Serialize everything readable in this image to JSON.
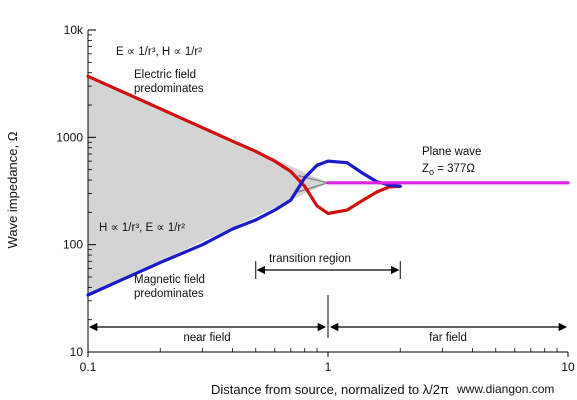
{
  "chart_data": {
    "type": "line",
    "title": "",
    "xlabel": "Distance from source, normalized to λ/2π",
    "ylabel": "Wave impedance, Ω",
    "x_scale": "log",
    "y_scale": "log",
    "xlim": [
      0.1,
      10
    ],
    "ylim": [
      10,
      10000
    ],
    "x_ticks": [
      0.1,
      1,
      10
    ],
    "x_tick_labels": [
      "0.1",
      "1",
      "10"
    ],
    "y_ticks": [
      10,
      100,
      1000,
      10000
    ],
    "y_tick_labels": [
      "10",
      "100",
      "1000",
      "10k"
    ],
    "grid": false,
    "series": [
      {
        "color": "#d01010",
        "points": [
          [
            0.1,
            3700
          ],
          [
            0.2,
            1850
          ],
          [
            0.3,
            1230
          ],
          [
            0.4,
            920
          ],
          [
            0.5,
            740
          ],
          [
            0.6,
            600
          ],
          [
            0.7,
            480
          ],
          [
            0.8,
            350
          ],
          [
            0.9,
            230
          ],
          [
            1.0,
            195
          ],
          [
            1.2,
            210
          ],
          [
            1.4,
            260
          ],
          [
            1.6,
            310
          ],
          [
            1.8,
            345
          ],
          [
            2.0,
            350
          ]
        ]
      },
      {
        "color": "#1a1ac8",
        "points": [
          [
            0.1,
            34
          ],
          [
            0.2,
            68
          ],
          [
            0.3,
            100
          ],
          [
            0.4,
            140
          ],
          [
            0.5,
            170
          ],
          [
            0.6,
            210
          ],
          [
            0.7,
            260
          ],
          [
            0.8,
            420
          ],
          [
            0.9,
            550
          ],
          [
            1.0,
            600
          ],
          [
            1.2,
            580
          ],
          [
            1.4,
            460
          ],
          [
            1.6,
            385
          ],
          [
            1.8,
            360
          ],
          [
            2.0,
            350
          ]
        ]
      },
      {
        "color": "#e020e0",
        "points": [
          [
            1.0,
            377
          ],
          [
            10,
            377
          ]
        ]
      }
    ],
    "gray_extensions": {
      "color": "#888888",
      "upper": [
        [
          0.75,
          440
        ],
        [
          1.0,
          377
        ]
      ],
      "lower": [
        [
          0.75,
          310
        ],
        [
          1.0,
          377
        ]
      ]
    },
    "shaded_region": {
      "color": "#d4d4d4",
      "upper": [
        [
          0.1,
          3700
        ],
        [
          1.0,
          377
        ]
      ],
      "lower": [
        [
          0.1,
          34
        ],
        [
          1.0,
          377
        ]
      ]
    },
    "annotations": {
      "formula_e": "E ∝ 1/r³, H ∝ 1/r²",
      "e_field": [
        "Electric field",
        "predominates"
      ],
      "formula_h": "H ∝ 1/r³, E ∝ 1/r²",
      "h_field": [
        "Magnetic field",
        "predominates"
      ],
      "plane_wave": "Plane wave",
      "z0_main": "Z",
      "z0_sub": "o",
      "z0_rest": " = 377Ω",
      "transition": "transition region",
      "near_field": "near field",
      "far_field": "far field",
      "watermark": "www.diangon.com"
    },
    "brackets": {
      "transition": [
        0.5,
        2.0
      ],
      "near": [
        0.1,
        1.0
      ],
      "far": [
        1.0,
        10
      ]
    }
  }
}
